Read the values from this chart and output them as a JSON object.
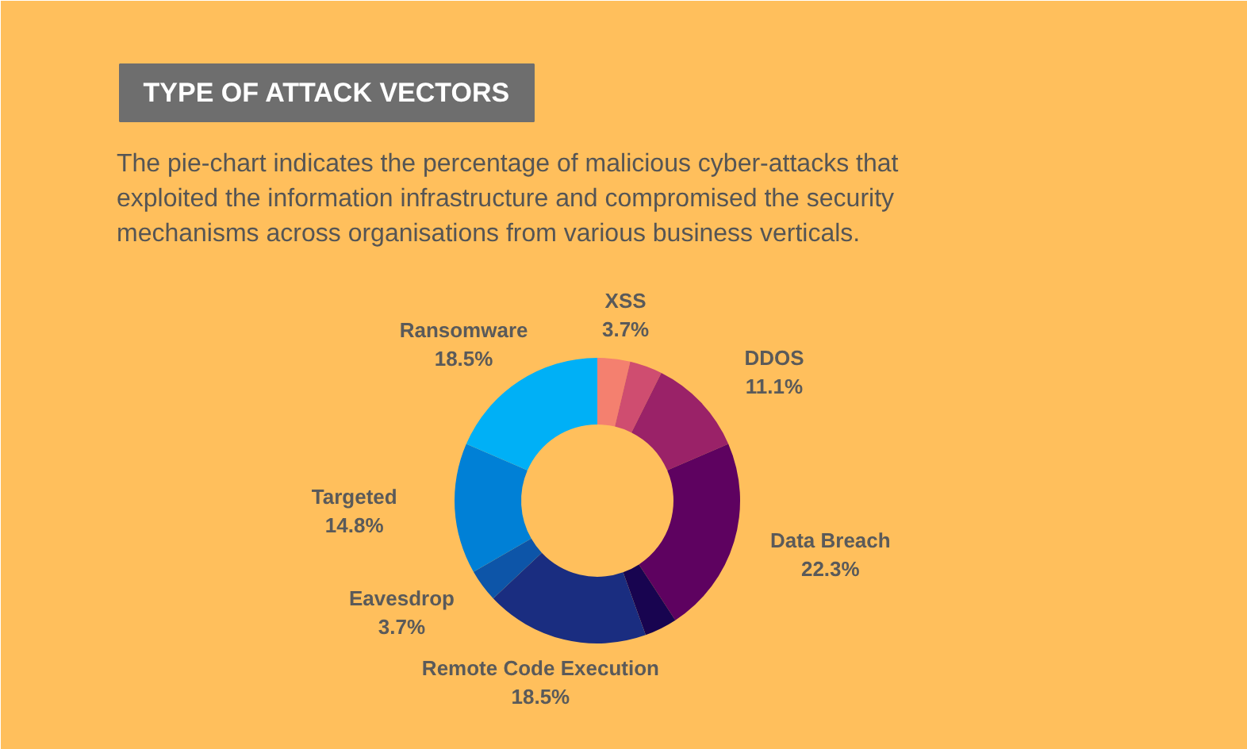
{
  "chart_data": {
    "type": "donut",
    "title": "TYPE OF ATTACK VECTORS",
    "subtitle": "The pie-chart indicates the percentage of malicious cyber-attacks that exploited the information infrastructure and compromised the security mechanisms across organisations from various business verticals.",
    "categories": [
      "XSS",
      null,
      "DDOS",
      "Data Breach",
      null,
      "Remote Code Execution",
      "Eavesdrop",
      "Targeted",
      "Ransomware"
    ],
    "values": [
      3.7,
      3.7,
      11.1,
      22.3,
      3.7,
      18.5,
      3.7,
      14.8,
      18.5
    ],
    "value_labels": [
      "3.7%",
      null,
      "11.1%",
      "22.3%",
      null,
      "18.5%",
      "3.7%",
      "14.8%",
      "18.5%"
    ],
    "colors": [
      "#f4806f",
      "#cf4d70",
      "#9a2268",
      "#5e0260",
      "#180450",
      "#1a2d80",
      "#0d55a8",
      "#0080d6",
      "#00b0f6"
    ]
  }
}
